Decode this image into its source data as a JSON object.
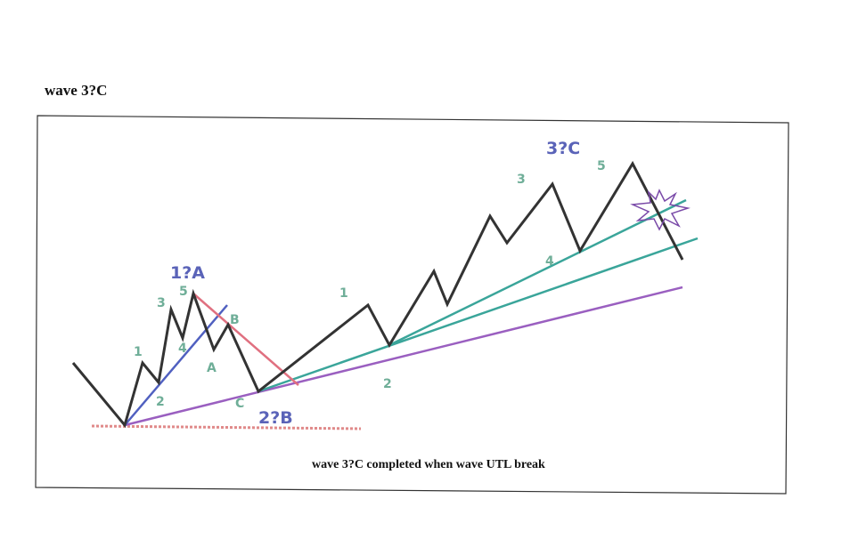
{
  "title": "wave 3?C",
  "caption": "wave 3?C completed when wave UTL break",
  "labels": {
    "degree": [
      "1?A",
      "2?B",
      "3?C"
    ],
    "left_waves": [
      "1",
      "2",
      "3",
      "4",
      "5",
      "A",
      "B",
      "C"
    ],
    "right_waves": [
      "1",
      "2",
      "3",
      "4",
      "5"
    ]
  }
}
